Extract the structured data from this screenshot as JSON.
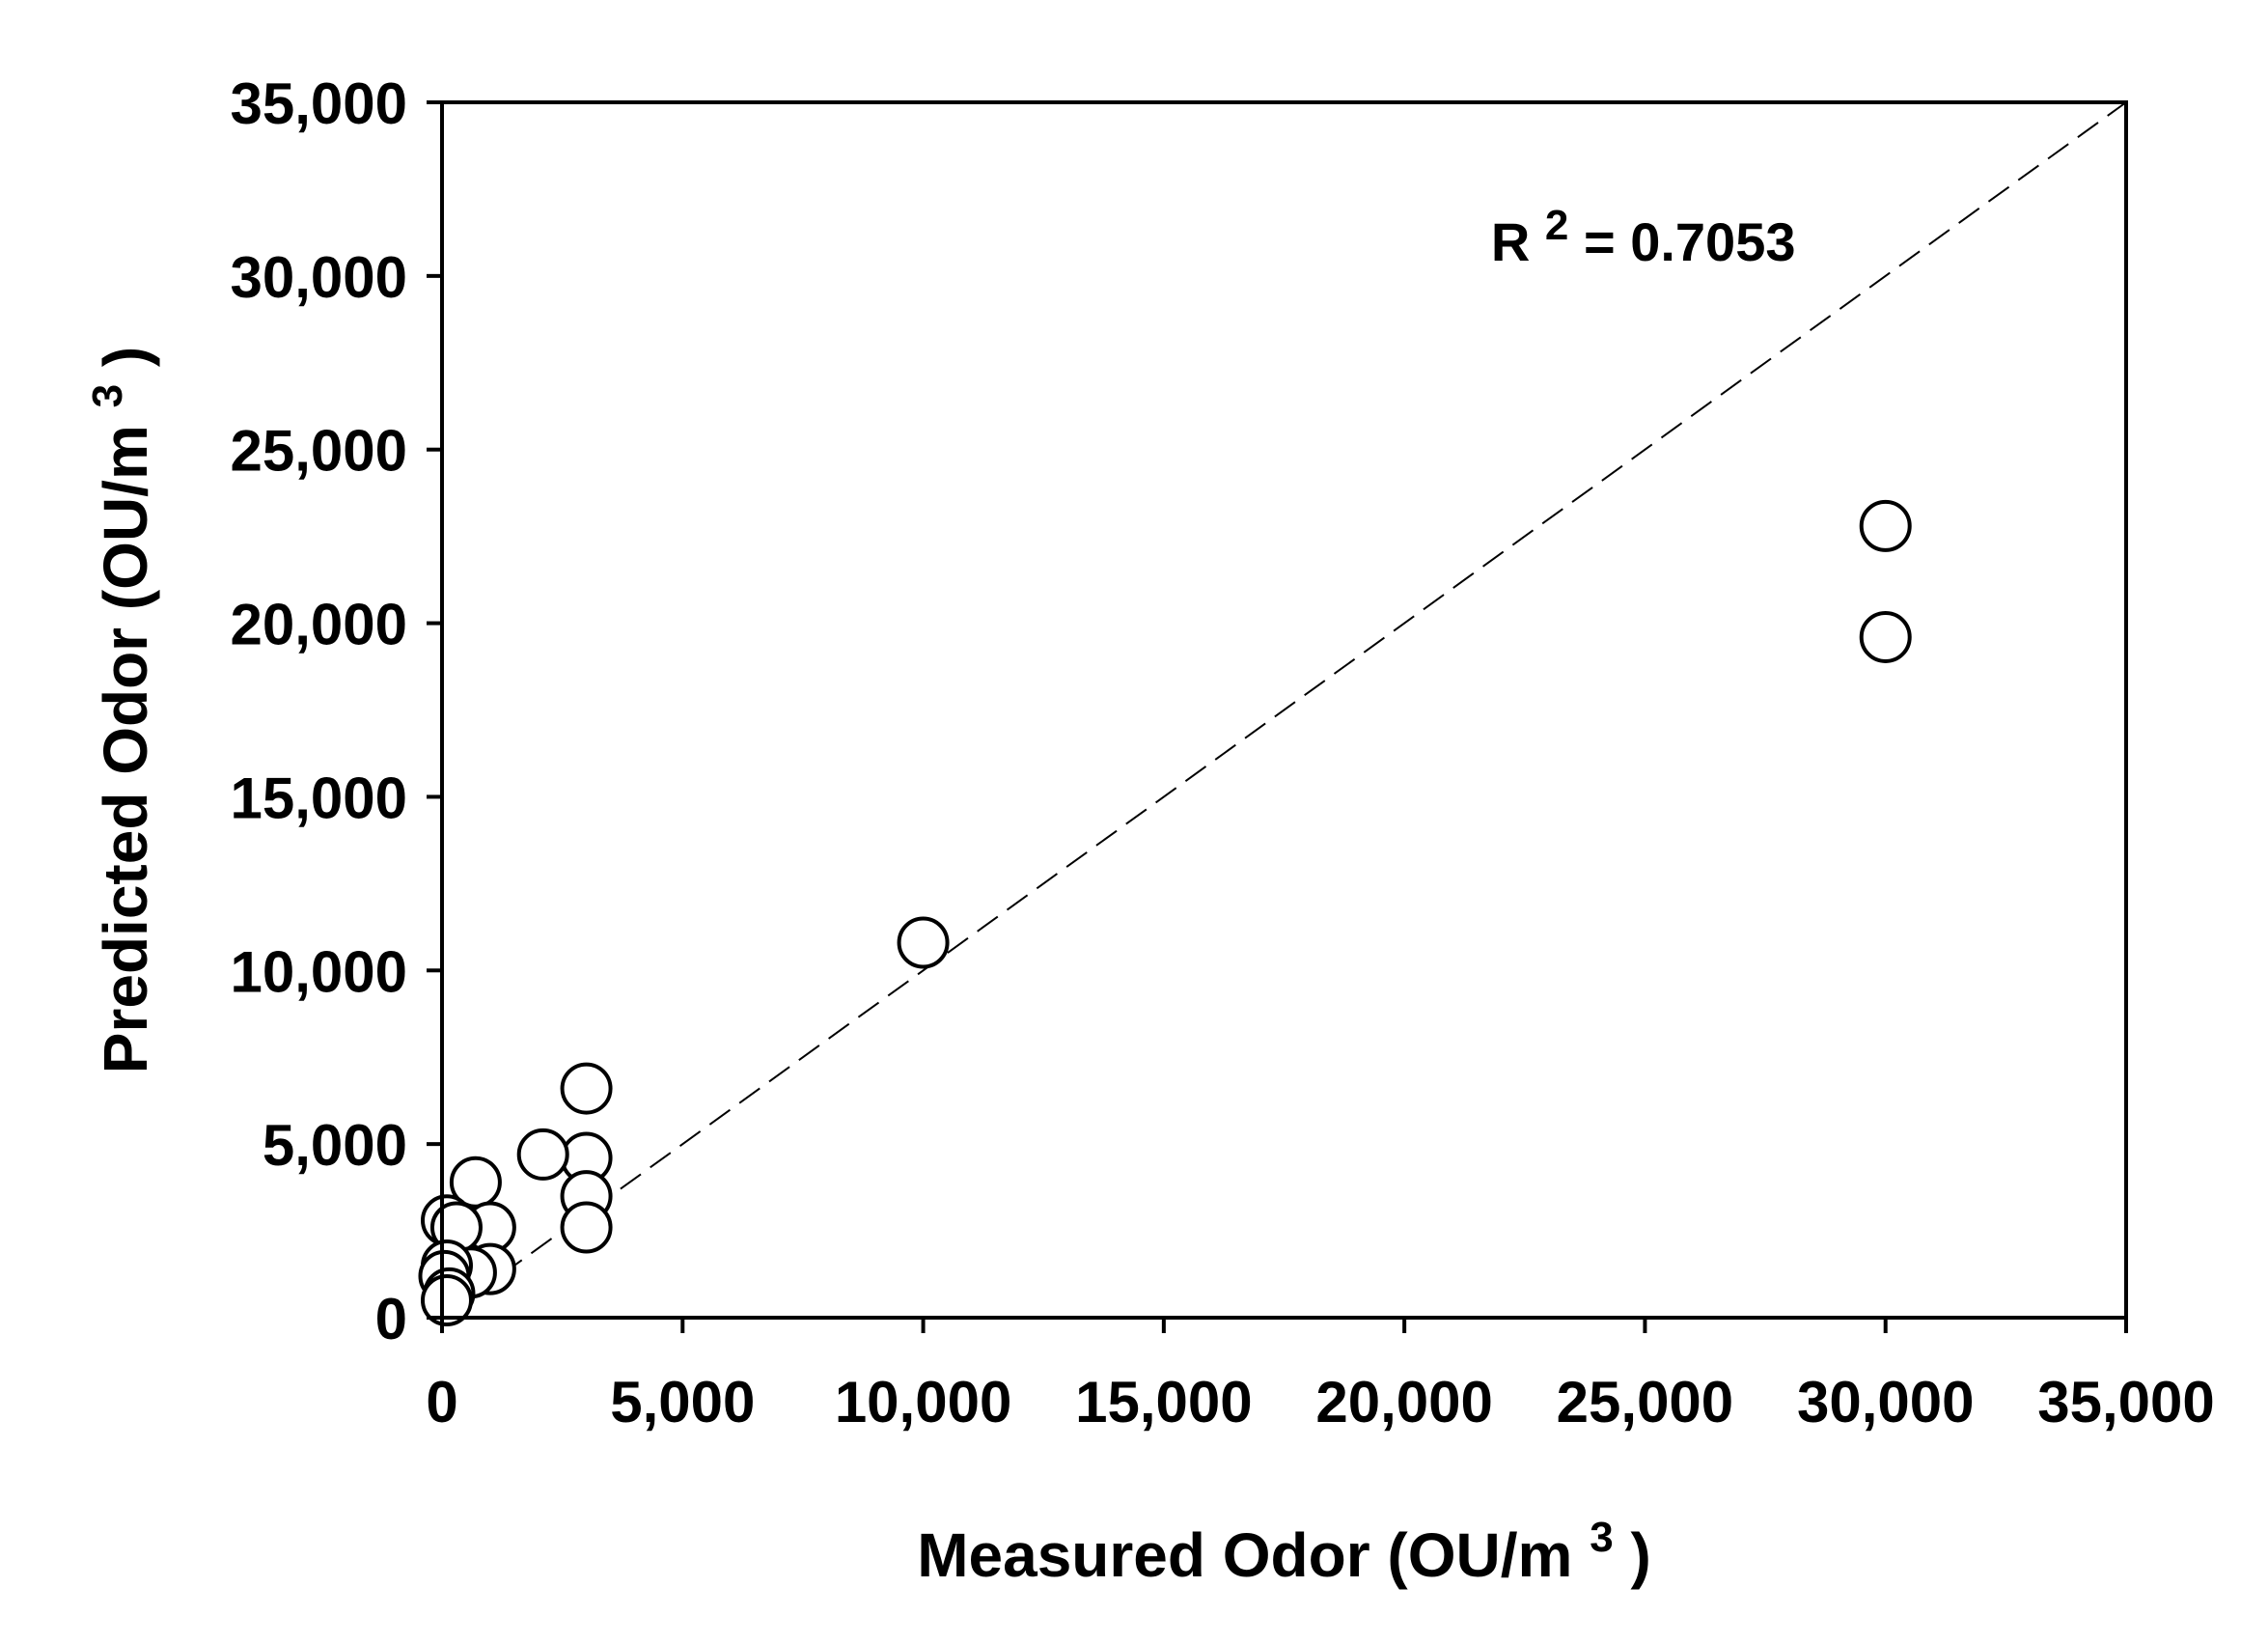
{
  "chart_data": {
    "type": "scatter",
    "title": "",
    "xlabel": {
      "text": "Measured Odor (OU/m",
      "superscript": "3",
      "suffix": ")"
    },
    "ylabel": {
      "text": "Predicted Odor (OU/m",
      "superscript": "3",
      "suffix": ")"
    },
    "xlim": [
      0,
      35000
    ],
    "ylim": [
      0,
      35000
    ],
    "xticks": [
      0,
      5000,
      10000,
      15000,
      20000,
      25000,
      30000,
      35000
    ],
    "yticks": [
      0,
      5000,
      10000,
      15000,
      20000,
      25000,
      30000,
      35000
    ],
    "xtick_labels": [
      "0",
      "5,000",
      "10,000",
      "15,000",
      "20,000",
      "25,000",
      "30,000",
      "35,000"
    ],
    "ytick_labels": [
      "0",
      "5,000",
      "10,000",
      "15,000",
      "20,000",
      "25,000",
      "30,000",
      "35,000"
    ],
    "grid": false,
    "legend": "none",
    "marker": "open-circle",
    "colors": {
      "marker_stroke": "#000000",
      "marker_fill": "#ffffff",
      "axis": "#000000",
      "reference_line": "#000000"
    },
    "reference_line": {
      "style": "dashed",
      "from": [
        0,
        0
      ],
      "to": [
        35000,
        35000
      ]
    },
    "annotation": {
      "base": "R",
      "superscript": "2",
      "rest": " = 0.7053",
      "x": 21800,
      "y": 31000
    },
    "points": [
      {
        "x": 30000,
        "y": 22800
      },
      {
        "x": 30000,
        "y": 19600
      },
      {
        "x": 10000,
        "y": 10800
      },
      {
        "x": 3000,
        "y": 6600
      },
      {
        "x": 3000,
        "y": 4600
      },
      {
        "x": 3000,
        "y": 3500
      },
      {
        "x": 3000,
        "y": 2600
      },
      {
        "x": 2100,
        "y": 4700
      },
      {
        "x": 700,
        "y": 3900
      },
      {
        "x": 1000,
        "y": 2600
      },
      {
        "x": 1000,
        "y": 1400
      },
      {
        "x": 100,
        "y": 2800
      },
      {
        "x": 300,
        "y": 2600
      },
      {
        "x": 600,
        "y": 1300
      },
      {
        "x": 100,
        "y": 1500
      },
      {
        "x": 50,
        "y": 1200
      },
      {
        "x": 150,
        "y": 700
      },
      {
        "x": 100,
        "y": 500
      }
    ]
  }
}
